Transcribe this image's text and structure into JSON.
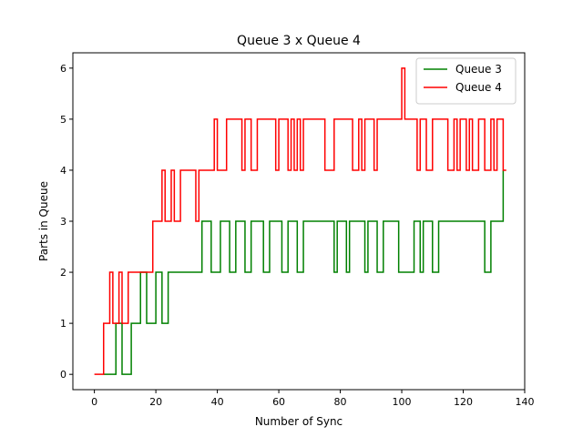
{
  "chart_data": {
    "type": "line",
    "title": "Queue 3 x Queue 4",
    "xlabel": "Number of Sync",
    "ylabel": "Parts in Queue",
    "xlim": [
      -7,
      140
    ],
    "ylim": [
      -0.3,
      6.3
    ],
    "xticks": [
      0,
      20,
      40,
      60,
      80,
      100,
      120,
      140
    ],
    "yticks": [
      0,
      1,
      2,
      3,
      4,
      5,
      6
    ],
    "grid": false,
    "legend_position": "top-right",
    "step": "post",
    "series": [
      {
        "name": "Queue 3",
        "color": "#008000",
        "points": [
          [
            3,
            0
          ],
          [
            7,
            1
          ],
          [
            9,
            0
          ],
          [
            12,
            1
          ],
          [
            15,
            2
          ],
          [
            17,
            1
          ],
          [
            20,
            2
          ],
          [
            22,
            1
          ],
          [
            24,
            2
          ],
          [
            35,
            3
          ],
          [
            38,
            2
          ],
          [
            41,
            3
          ],
          [
            44,
            2
          ],
          [
            46,
            3
          ],
          [
            49,
            2
          ],
          [
            51,
            3
          ],
          [
            55,
            2
          ],
          [
            57,
            3
          ],
          [
            61,
            2
          ],
          [
            63,
            3
          ],
          [
            66,
            2
          ],
          [
            68,
            3
          ],
          [
            78,
            2
          ],
          [
            79,
            3
          ],
          [
            82,
            2
          ],
          [
            83,
            3
          ],
          [
            88,
            2
          ],
          [
            89,
            3
          ],
          [
            92,
            2
          ],
          [
            94,
            3
          ],
          [
            99,
            2
          ],
          [
            104,
            3
          ],
          [
            106,
            2
          ],
          [
            107,
            3
          ],
          [
            110,
            2
          ],
          [
            112,
            3
          ],
          [
            127,
            2
          ],
          [
            129,
            3
          ],
          [
            133,
            4
          ]
        ]
      },
      {
        "name": "Queue 4",
        "color": "#ff0000",
        "points": [
          [
            0,
            0
          ],
          [
            3,
            1
          ],
          [
            5,
            2
          ],
          [
            6,
            1
          ],
          [
            8,
            2
          ],
          [
            9,
            1
          ],
          [
            11,
            2
          ],
          [
            19,
            3
          ],
          [
            22,
            4
          ],
          [
            23,
            3
          ],
          [
            25,
            4
          ],
          [
            26,
            3
          ],
          [
            28,
            4
          ],
          [
            33,
            3
          ],
          [
            34,
            4
          ],
          [
            39,
            5
          ],
          [
            40,
            4
          ],
          [
            43,
            5
          ],
          [
            48,
            4
          ],
          [
            49,
            5
          ],
          [
            51,
            4
          ],
          [
            53,
            5
          ],
          [
            59,
            4
          ],
          [
            60,
            5
          ],
          [
            63,
            4
          ],
          [
            64,
            5
          ],
          [
            65,
            4
          ],
          [
            66,
            5
          ],
          [
            67,
            4
          ],
          [
            68,
            5
          ],
          [
            75,
            4
          ],
          [
            78,
            5
          ],
          [
            84,
            4
          ],
          [
            86,
            5
          ],
          [
            87,
            4
          ],
          [
            88,
            5
          ],
          [
            91,
            4
          ],
          [
            92,
            5
          ],
          [
            100,
            6
          ],
          [
            101,
            5
          ],
          [
            105,
            4
          ],
          [
            106,
            5
          ],
          [
            108,
            4
          ],
          [
            110,
            5
          ],
          [
            115,
            4
          ],
          [
            117,
            5
          ],
          [
            118,
            4
          ],
          [
            119,
            5
          ],
          [
            121,
            4
          ],
          [
            122,
            5
          ],
          [
            123,
            4
          ],
          [
            125,
            5
          ],
          [
            127,
            4
          ],
          [
            129,
            5
          ],
          [
            130,
            4
          ],
          [
            131,
            5
          ],
          [
            133,
            4
          ],
          [
            134,
            4
          ]
        ]
      }
    ]
  }
}
